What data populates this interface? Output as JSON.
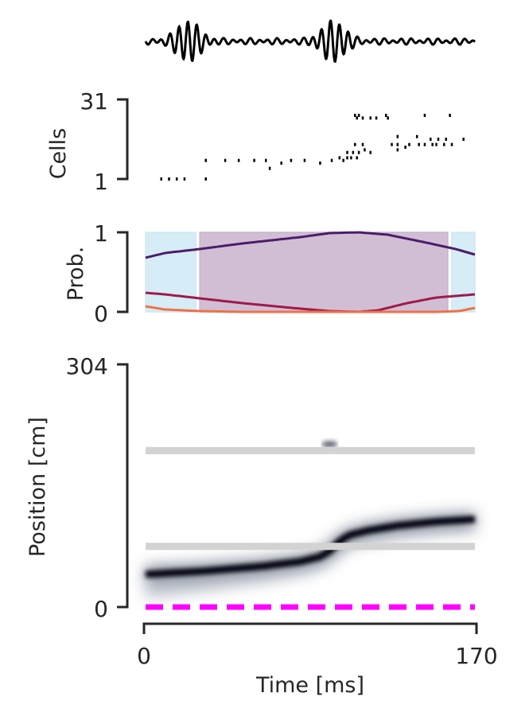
{
  "chart_data": [
    {
      "panel": "lfp-trace",
      "type": "line",
      "description": "Band-pass filtered LFP (ripple) trace, no axes shown",
      "x_range": [
        0,
        170
      ],
      "envelope_peaks_ms": [
        22,
        97
      ],
      "color": "#000000"
    },
    {
      "panel": "raster",
      "type": "scatter",
      "xlabel": "",
      "ylabel": "Cells",
      "yticks": [
        "1",
        "31"
      ],
      "ylim": [
        1,
        31
      ],
      "xlim": [
        0,
        170
      ],
      "marker_color": "#000000",
      "spikes": [
        {
          "x": 8,
          "y": 1
        },
        {
          "x": 12,
          "y": 1
        },
        {
          "x": 16,
          "y": 1
        },
        {
          "x": 20,
          "y": 1
        },
        {
          "x": 31,
          "y": 1
        },
        {
          "x": 31,
          "y": 8
        },
        {
          "x": 41,
          "y": 8
        },
        {
          "x": 48,
          "y": 8
        },
        {
          "x": 56,
          "y": 8
        },
        {
          "x": 62,
          "y": 8
        },
        {
          "x": 64,
          "y": 5
        },
        {
          "x": 70,
          "y": 7
        },
        {
          "x": 75,
          "y": 8
        },
        {
          "x": 82,
          "y": 8
        },
        {
          "x": 90,
          "y": 7
        },
        {
          "x": 96,
          "y": 8
        },
        {
          "x": 100,
          "y": 9
        },
        {
          "x": 102,
          "y": 8
        },
        {
          "x": 104,
          "y": 9
        },
        {
          "x": 104,
          "y": 11
        },
        {
          "x": 106,
          "y": 9
        },
        {
          "x": 107,
          "y": 11
        },
        {
          "x": 108,
          "y": 14
        },
        {
          "x": 109,
          "y": 9
        },
        {
          "x": 110,
          "y": 11
        },
        {
          "x": 112,
          "y": 14
        },
        {
          "x": 113,
          "y": 12
        },
        {
          "x": 116,
          "y": 11
        },
        {
          "x": 108,
          "y": 25
        },
        {
          "x": 109,
          "y": 24
        },
        {
          "x": 110,
          "y": 25
        },
        {
          "x": 112,
          "y": 24
        },
        {
          "x": 116,
          "y": 24
        },
        {
          "x": 119,
          "y": 24
        },
        {
          "x": 124,
          "y": 25
        },
        {
          "x": 125,
          "y": 24
        },
        {
          "x": 127,
          "y": 14
        },
        {
          "x": 130,
          "y": 14
        },
        {
          "x": 134,
          "y": 13
        },
        {
          "x": 136,
          "y": 14
        },
        {
          "x": 141,
          "y": 14
        },
        {
          "x": 144,
          "y": 14
        },
        {
          "x": 148,
          "y": 14
        },
        {
          "x": 150,
          "y": 14
        },
        {
          "x": 154,
          "y": 14
        },
        {
          "x": 158,
          "y": 14
        },
        {
          "x": 130,
          "y": 17
        },
        {
          "x": 140,
          "y": 17
        },
        {
          "x": 147,
          "y": 16
        },
        {
          "x": 151,
          "y": 16
        },
        {
          "x": 155,
          "y": 16
        },
        {
          "x": 164,
          "y": 16
        },
        {
          "x": 130,
          "y": 12
        },
        {
          "x": 144,
          "y": 25
        },
        {
          "x": 157,
          "y": 25
        }
      ]
    },
    {
      "panel": "state-probability",
      "type": "line",
      "ylabel": "Prob.",
      "yticks": [
        "0",
        "1"
      ],
      "ylim": [
        0,
        1
      ],
      "xlim": [
        0,
        170
      ],
      "shaded_regions": [
        {
          "x0": 0,
          "x1": 26,
          "color": "#cfe9f5",
          "state": "continuous"
        },
        {
          "x0": 28,
          "x1": 156,
          "color": "#c9b3cd",
          "state": "fragmented"
        },
        {
          "x0": 158,
          "x1": 170,
          "color": "#cfe9f5",
          "state": "continuous"
        }
      ],
      "series": [
        {
          "color": "#4b1d6b",
          "x": [
            0,
            10,
            28,
            50,
            80,
            95,
            110,
            125,
            145,
            160,
            170
          ],
          "y": [
            0.68,
            0.74,
            0.79,
            0.86,
            0.94,
            0.99,
            1.0,
            0.97,
            0.87,
            0.79,
            0.72
          ]
        },
        {
          "color": "#9e1a4a",
          "x": [
            0,
            10,
            28,
            50,
            80,
            95,
            110,
            120,
            135,
            150,
            170
          ],
          "y": [
            0.24,
            0.22,
            0.17,
            0.11,
            0.04,
            0.01,
            0.0,
            0.02,
            0.11,
            0.18,
            0.22
          ]
        },
        {
          "color": "#f07048",
          "x": [
            0,
            10,
            28,
            50,
            80,
            120,
            150,
            162,
            170
          ],
          "y": [
            0.07,
            0.03,
            0.01,
            0.0,
            0.0,
            0.0,
            0.0,
            0.01,
            0.05
          ]
        }
      ]
    },
    {
      "panel": "posterior",
      "type": "heatmap",
      "xlabel": "Time [ms]",
      "ylabel": "Position [cm]",
      "xticks": [
        "0",
        "170"
      ],
      "yticks": [
        "0",
        "304"
      ],
      "xlim": [
        0,
        170
      ],
      "ylim": [
        0,
        304
      ],
      "colormap": "bone_r",
      "band_center": {
        "x": [
          0,
          30,
          60,
          80,
          90,
          95,
          100,
          105,
          115,
          130,
          150,
          170
        ],
        "y": [
          41,
          45,
          51,
          57,
          63,
          70,
          82,
          90,
          96,
          102,
          107,
          110
        ]
      },
      "band_halfwidth_cm": 6,
      "faint_blob": {
        "x": 95,
        "y": 204
      },
      "gray_lines_cm": [
        196,
        76
      ],
      "gray_line_color": "#d3d3d3",
      "dashed_line": {
        "y": 0,
        "color": "#ff00ff",
        "style": "dashed"
      }
    }
  ]
}
